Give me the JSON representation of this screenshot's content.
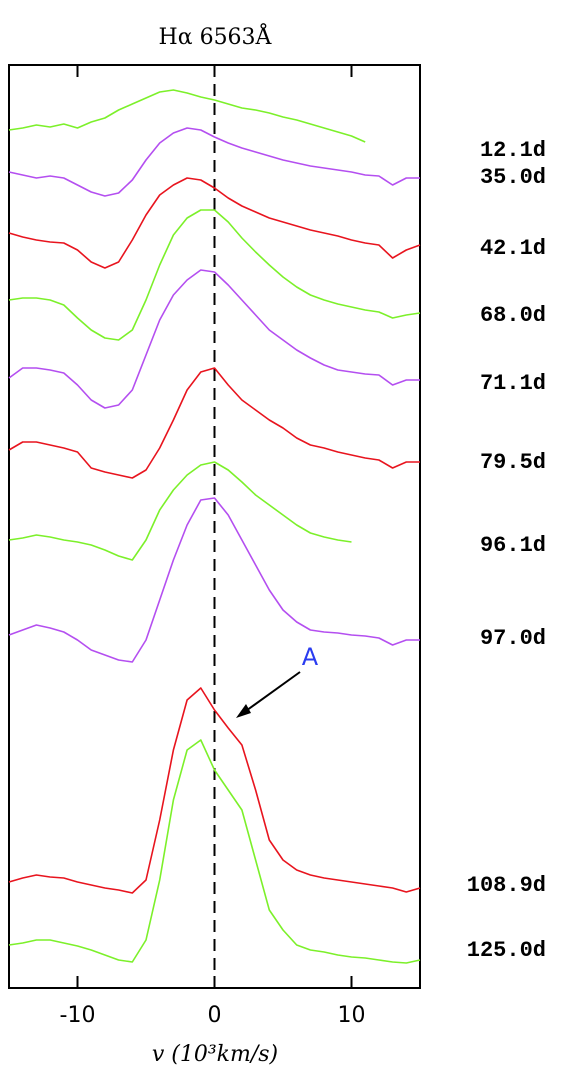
{
  "chart_data": {
    "type": "line",
    "title": "Hα 6563Å",
    "x_label": "v (10³km/s)",
    "x": [
      -15,
      -14,
      -13,
      -12,
      -11,
      -10,
      -9,
      -8,
      -7,
      -6,
      -5,
      -4,
      -3,
      -2,
      -1,
      0,
      1,
      2,
      3,
      4,
      5,
      6,
      7,
      8,
      9,
      10,
      11,
      12,
      13,
      14,
      15
    ],
    "xlim": [
      -15,
      15
    ],
    "xticks": [
      -10,
      0,
      10
    ],
    "ylim": [
      0,
      923
    ],
    "reference_line_x": 0,
    "series": [
      {
        "name": "12.1d",
        "color": "#7cf02a",
        "values": [
          858,
          860,
          863,
          861,
          864,
          860,
          866,
          870,
          878,
          884,
          890,
          896,
          898,
          895,
          891,
          888,
          884,
          880,
          878,
          875,
          871,
          868,
          864,
          860,
          856,
          852,
          846,
          null,
          null,
          null,
          null
        ]
      },
      {
        "name": "35.0d",
        "color": "#b44ff0",
        "values": [
          816,
          813,
          810,
          812,
          810,
          803,
          796,
          792,
          795,
          808,
          828,
          845,
          855,
          860,
          858,
          851,
          845,
          840,
          836,
          832,
          828,
          825,
          822,
          820,
          818,
          816,
          813,
          812,
          803,
          810,
          810
        ]
      },
      {
        "name": "42.1d",
        "color": "#e8141e",
        "values": [
          755,
          751,
          748,
          746,
          745,
          738,
          726,
          720,
          726,
          748,
          773,
          793,
          803,
          810,
          808,
          800,
          790,
          782,
          776,
          770,
          766,
          762,
          758,
          755,
          752,
          748,
          745,
          743,
          730,
          738,
          743
        ]
      },
      {
        "name": "68.0d",
        "color": "#7cf02a",
        "values": [
          688,
          690,
          690,
          688,
          683,
          670,
          658,
          650,
          648,
          658,
          688,
          723,
          753,
          770,
          778,
          778,
          766,
          750,
          736,
          723,
          711,
          701,
          693,
          688,
          684,
          681,
          678,
          676,
          670,
          673,
          675
        ]
      },
      {
        "name": "71.1d",
        "color": "#b44ff0",
        "values": [
          610,
          620,
          620,
          618,
          615,
          603,
          588,
          580,
          583,
          598,
          633,
          668,
          693,
          708,
          718,
          716,
          703,
          688,
          673,
          658,
          648,
          638,
          630,
          623,
          618,
          616,
          614,
          613,
          603,
          608,
          608
        ]
      },
      {
        "name": "79.5d",
        "color": "#e8141e",
        "values": [
          538,
          546,
          546,
          543,
          540,
          536,
          520,
          516,
          513,
          510,
          518,
          540,
          568,
          598,
          616,
          620,
          603,
          588,
          578,
          568,
          560,
          550,
          543,
          540,
          536,
          533,
          530,
          528,
          520,
          526,
          526
        ]
      },
      {
        "name": "96.1d",
        "color": "#7cf02a",
        "values": [
          448,
          450,
          453,
          451,
          448,
          446,
          443,
          438,
          432,
          428,
          448,
          478,
          498,
          513,
          523,
          526,
          518,
          506,
          493,
          483,
          473,
          463,
          455,
          451,
          448,
          446,
          null,
          null,
          null,
          null,
          null
        ]
      },
      {
        "name": "97.0d",
        "color": "#b44ff0",
        "values": [
          353,
          358,
          363,
          360,
          356,
          348,
          338,
          333,
          328,
          326,
          348,
          388,
          428,
          463,
          488,
          490,
          473,
          448,
          423,
          398,
          378,
          366,
          358,
          356,
          355,
          353,
          352,
          350,
          343,
          348,
          348
        ]
      },
      {
        "name": "108.9d",
        "color": "#e8141e",
        "values": [
          106,
          110,
          113,
          111,
          110,
          106,
          103,
          100,
          98,
          95,
          108,
          168,
          238,
          288,
          300,
          278,
          260,
          243,
          198,
          148,
          128,
          118,
          113,
          110,
          108,
          106,
          104,
          102,
          100,
          96,
          100
        ]
      },
      {
        "name": "125.0d",
        "color": "#7cf02a",
        "values": [
          43,
          45,
          48,
          48,
          45,
          42,
          38,
          33,
          28,
          26,
          48,
          108,
          188,
          238,
          248,
          218,
          198,
          178,
          128,
          78,
          58,
          43,
          38,
          36,
          33,
          31,
          30,
          28,
          26,
          25,
          28
        ]
      }
    ],
    "annotations": [
      {
        "text": "A",
        "color": "#2a3cf0"
      }
    ]
  }
}
